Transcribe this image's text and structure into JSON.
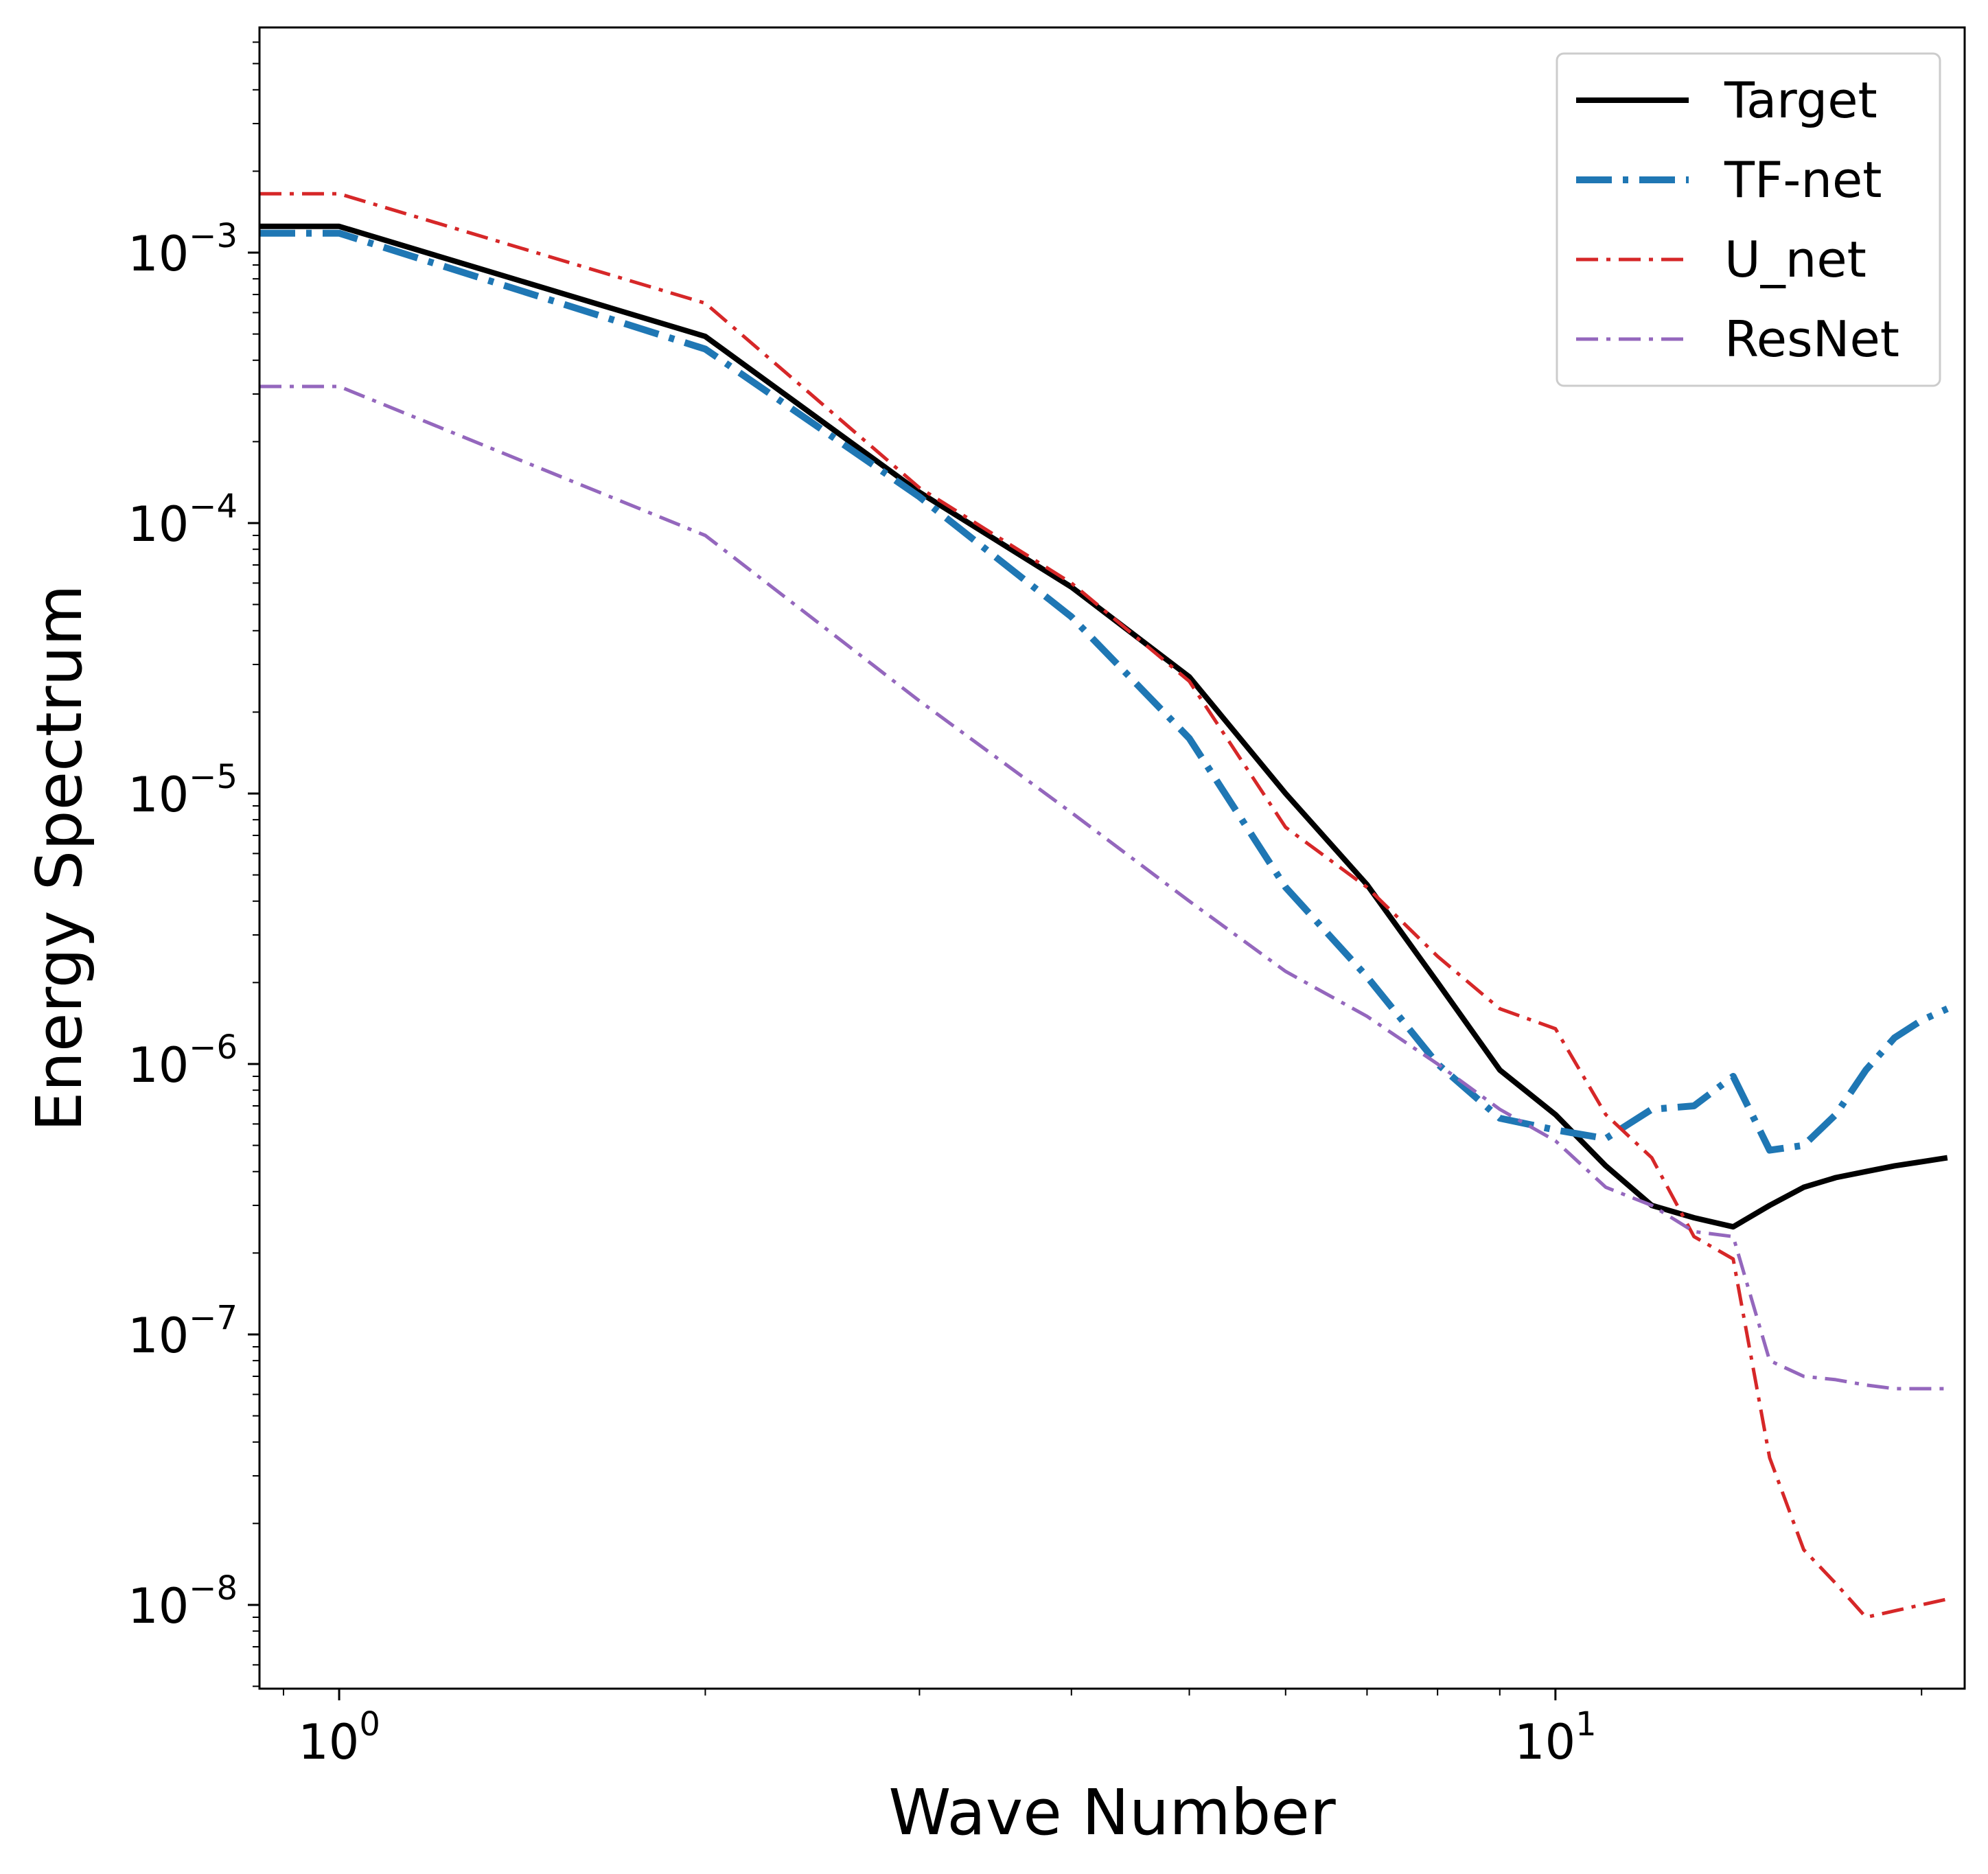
{
  "chart_data": {
    "type": "line",
    "title": "",
    "xlabel": "Wave Number",
    "ylabel": "Energy Spectrum",
    "xscale": "log",
    "yscale": "log",
    "xlim": [
      0.86,
      21.7
    ],
    "ylim": [
      4.9e-09,
      0.0068
    ],
    "grid": false,
    "legend_position": "top-right",
    "x_tick_labels": [
      {
        "value": 1,
        "base": "10",
        "exp": "0"
      },
      {
        "value": 10,
        "base": "10",
        "exp": "1"
      }
    ],
    "y_tick_labels": [
      {
        "value": 0.001,
        "base": "10",
        "exp": "−3"
      },
      {
        "value": 0.0001,
        "base": "10",
        "exp": "−4"
      },
      {
        "value": 1e-05,
        "base": "10",
        "exp": "−5"
      },
      {
        "value": 1e-06,
        "base": "10",
        "exp": "−6"
      },
      {
        "value": 1e-07,
        "base": "10",
        "exp": "−7"
      },
      {
        "value": 1e-08,
        "base": "10",
        "exp": "−8"
      }
    ],
    "x": [
      0.86,
      1,
      2,
      3,
      4,
      5,
      6,
      7,
      8,
      9,
      10,
      11,
      12,
      13,
      14,
      15,
      16,
      17,
      18,
      19,
      20,
      21
    ],
    "series": [
      {
        "name": "Target",
        "color": "#000000",
        "style": "solid",
        "width": 8,
        "values": [
          0.00125,
          0.00125,
          0.00049,
          0.00013,
          5.8e-05,
          2.7e-05,
          1e-05,
          4.6e-06,
          2e-06,
          9.5e-07,
          6.5e-07,
          4.2e-07,
          3e-07,
          2.7e-07,
          2.5e-07,
          3e-07,
          3.5e-07,
          3.8e-07,
          4e-07,
          4.2e-07,
          4.35e-07,
          4.5e-07
        ]
      },
      {
        "name": "TF-net",
        "color": "#1f77b4",
        "style": "dashdot-thick",
        "width": 10,
        "values": [
          0.00118,
          0.00118,
          0.00044,
          0.000125,
          4.5e-05,
          1.6e-05,
          4.5e-06,
          2.1e-06,
          1e-06,
          6.3e-07,
          5.7e-07,
          5.3e-07,
          6.8e-07,
          7e-07,
          9e-07,
          4.8e-07,
          5e-07,
          6.5e-07,
          9.5e-07,
          1.25e-06,
          1.45e-06,
          1.6e-06
        ]
      },
      {
        "name": "U_net",
        "color": "#d62728",
        "style": "dashdot",
        "width": 5,
        "values": [
          0.00165,
          0.00165,
          0.00065,
          0.000135,
          6e-05,
          2.6e-05,
          7.5e-06,
          4.5e-06,
          2.5e-06,
          1.6e-06,
          1.35e-06,
          6.5e-07,
          4.5e-07,
          2.3e-07,
          1.9e-07,
          3.5e-08,
          1.6e-08,
          1.2e-08,
          9e-09,
          9.5e-09,
          1e-08,
          1.05e-08
        ]
      },
      {
        "name": "ResNet",
        "color": "#9467bd",
        "style": "dashdot",
        "width": 5,
        "values": [
          0.00032,
          0.00032,
          9e-05,
          2.2e-05,
          8.5e-06,
          4e-06,
          2.2e-06,
          1.5e-06,
          1e-06,
          6.8e-07,
          5.2e-07,
          3.5e-07,
          3e-07,
          2.4e-07,
          2.3e-07,
          8e-08,
          7e-08,
          6.8e-08,
          6.5e-08,
          6.3e-08,
          6.3e-08,
          6.3e-08
        ]
      }
    ]
  }
}
